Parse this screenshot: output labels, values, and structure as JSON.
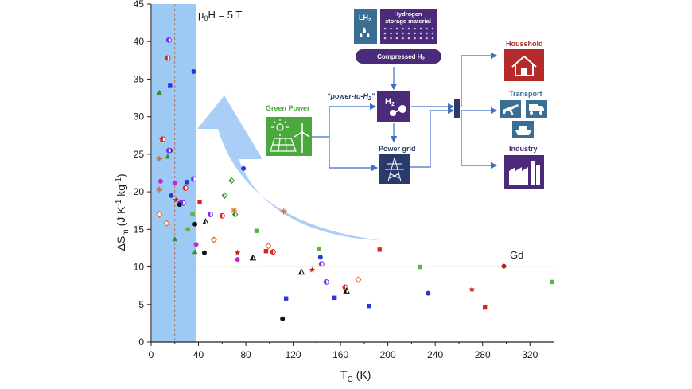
{
  "chart_data": {
    "type": "scatter",
    "title": "",
    "xlabel": "T",
    "xlabel_sub": "C",
    "xlabel_unit": "(K)",
    "ylabel_a": "-ΔS",
    "ylabel_sub": "m",
    "ylabel_b": " (J K",
    "ylabel_sup1": "-1",
    "ylabel_c": " kg",
    "ylabel_sup2": "-1",
    "ylabel_d": ")",
    "xlim": [
      0,
      340
    ],
    "ylim": [
      0,
      45
    ],
    "xticks": [
      0,
      40,
      80,
      120,
      160,
      200,
      240,
      280,
      320
    ],
    "yticks": [
      0,
      5,
      10,
      15,
      20,
      25,
      30,
      35,
      40,
      45
    ],
    "grid": false,
    "field_label_pre": "μ",
    "field_label_sub": "0",
    "field_label_post": "H = 5 T",
    "highlight_band_x": [
      0,
      38
    ],
    "highlight_band_color": "#8cc1f3",
    "dashed_vline_x": 20,
    "reference_line_y": 10.1,
    "reference_line_color": "#d9702a",
    "reference_label": "Gd",
    "points": [
      {
        "x": 15,
        "y": 40.2,
        "m": "halfcircle",
        "c": "#7a2ef0"
      },
      {
        "x": 14,
        "y": 37.8,
        "m": "halfcircle",
        "c": "#e0231f"
      },
      {
        "x": 36,
        "y": 36.0,
        "m": "circle",
        "c": "#2c35d6"
      },
      {
        "x": 16,
        "y": 34.2,
        "m": "square",
        "c": "#2c35d6"
      },
      {
        "x": 7,
        "y": 33.2,
        "m": "triangle",
        "c": "#3a8a2e"
      },
      {
        "x": 9,
        "y": 27.0,
        "m": "star",
        "c": "#c22020"
      },
      {
        "x": 10,
        "y": 27.0,
        "m": "halfcircle",
        "c": "#e0231f"
      },
      {
        "x": 16,
        "y": 25.5,
        "m": "circle",
        "c": "#111111"
      },
      {
        "x": 15,
        "y": 25.5,
        "m": "halfcircle",
        "c": "#7a2ef0"
      },
      {
        "x": 7,
        "y": 24.4,
        "m": "asterisk",
        "c": "#d9702a"
      },
      {
        "x": 14,
        "y": 24.7,
        "m": "triangle",
        "c": "#3a8a2e"
      },
      {
        "x": 78,
        "y": 23.1,
        "m": "circle",
        "c": "#2c35d6"
      },
      {
        "x": 36,
        "y": 21.7,
        "m": "halfcircle",
        "c": "#7a2ef0"
      },
      {
        "x": 68,
        "y": 21.5,
        "m": "halfdiamond",
        "c": "#3a8a2e"
      },
      {
        "x": 8,
        "y": 21.4,
        "m": "circle",
        "c": "#d11fd1"
      },
      {
        "x": 20,
        "y": 21.2,
        "m": "circle",
        "c": "#d11fd1"
      },
      {
        "x": 30,
        "y": 21.3,
        "m": "square",
        "c": "#2c35d6"
      },
      {
        "x": 7,
        "y": 20.3,
        "m": "asterisk",
        "c": "#d9702a"
      },
      {
        "x": 29,
        "y": 20.5,
        "m": "halfcircle",
        "c": "#e0231f"
      },
      {
        "x": 17,
        "y": 19.5,
        "m": "circle",
        "c": "#2c35d6"
      },
      {
        "x": 62,
        "y": 19.5,
        "m": "halfdiamond",
        "c": "#3a8a2e"
      },
      {
        "x": 21,
        "y": 18.9,
        "m": "star",
        "c": "#c22020"
      },
      {
        "x": 25,
        "y": 18.5,
        "m": "halfcircle",
        "c": "#7a2ef0"
      },
      {
        "x": 24,
        "y": 18.3,
        "m": "circle",
        "c": "#111111"
      },
      {
        "x": 27,
        "y": 18.5,
        "m": "halfcircle",
        "c": "#7a2ef0"
      },
      {
        "x": 41,
        "y": 18.6,
        "m": "square",
        "c": "#e0231f"
      },
      {
        "x": 7,
        "y": 17.0,
        "m": "diamond",
        "c": "#d9702a"
      },
      {
        "x": 35,
        "y": 17.0,
        "m": "square",
        "c": "#55b83a"
      },
      {
        "x": 50,
        "y": 17.0,
        "m": "halfcircle",
        "c": "#7a2ef0"
      },
      {
        "x": 60,
        "y": 16.8,
        "m": "halfcircle",
        "c": "#e0231f"
      },
      {
        "x": 70,
        "y": 17.5,
        "m": "asterisk",
        "c": "#d9702a"
      },
      {
        "x": 71,
        "y": 17.0,
        "m": "halfdiamond",
        "c": "#3a8a2e"
      },
      {
        "x": 112,
        "y": 17.4,
        "m": "asterisk",
        "c": "#d9702a"
      },
      {
        "x": 46,
        "y": 16.0,
        "m": "halftri",
        "c": "#111111"
      },
      {
        "x": 13,
        "y": 15.8,
        "m": "diamond",
        "c": "#d9702a"
      },
      {
        "x": 37,
        "y": 15.7,
        "m": "circle",
        "c": "#111111"
      },
      {
        "x": 31,
        "y": 15.0,
        "m": "square",
        "c": "#55b83a"
      },
      {
        "x": 89,
        "y": 14.8,
        "m": "square",
        "c": "#55b83a"
      },
      {
        "x": 20,
        "y": 13.7,
        "m": "triangle",
        "c": "#3a8a2e"
      },
      {
        "x": 53,
        "y": 13.6,
        "m": "diamond",
        "c": "#d9702a"
      },
      {
        "x": 38,
        "y": 13.0,
        "m": "circle",
        "c": "#d11fd1"
      },
      {
        "x": 99,
        "y": 12.8,
        "m": "diamond",
        "c": "#d9702a"
      },
      {
        "x": 142,
        "y": 12.4,
        "m": "square",
        "c": "#55b83a"
      },
      {
        "x": 193,
        "y": 12.3,
        "m": "square",
        "c": "#e0231f"
      },
      {
        "x": 37,
        "y": 12.0,
        "m": "triangle",
        "c": "#3a8a2e"
      },
      {
        "x": 45,
        "y": 11.9,
        "m": "circle",
        "c": "#111111"
      },
      {
        "x": 73,
        "y": 11.9,
        "m": "star",
        "c": "#c22020"
      },
      {
        "x": 97,
        "y": 12.1,
        "m": "square",
        "c": "#e0231f"
      },
      {
        "x": 103,
        "y": 12.0,
        "m": "halfcircle",
        "c": "#e0231f"
      },
      {
        "x": 86,
        "y": 11.2,
        "m": "halftri",
        "c": "#111111"
      },
      {
        "x": 143,
        "y": 11.3,
        "m": "circle",
        "c": "#2c35d6"
      },
      {
        "x": 73,
        "y": 11.0,
        "m": "circle",
        "c": "#d11fd1"
      },
      {
        "x": 144,
        "y": 10.4,
        "m": "halfcircle",
        "c": "#7a2ef0"
      },
      {
        "x": 227,
        "y": 10.0,
        "m": "square",
        "c": "#55b83a"
      },
      {
        "x": 298,
        "y": 10.1,
        "m": "circle",
        "c": "#c22020"
      },
      {
        "x": 136,
        "y": 9.6,
        "m": "star",
        "c": "#c22020"
      },
      {
        "x": 127,
        "y": 9.3,
        "m": "halftri",
        "c": "#111111"
      },
      {
        "x": 148,
        "y": 8.0,
        "m": "halfcircle",
        "c": "#7a2ef0"
      },
      {
        "x": 175,
        "y": 8.3,
        "m": "diamond",
        "c": "#d9702a"
      },
      {
        "x": 339,
        "y": 8.0,
        "m": "square",
        "c": "#55b83a"
      },
      {
        "x": 164,
        "y": 7.3,
        "m": "halfcircle",
        "c": "#e0231f"
      },
      {
        "x": 165,
        "y": 6.8,
        "m": "halftri",
        "c": "#111111"
      },
      {
        "x": 271,
        "y": 7.0,
        "m": "star",
        "c": "#c22020"
      },
      {
        "x": 234,
        "y": 6.5,
        "m": "circle",
        "c": "#2c35d6"
      },
      {
        "x": 114,
        "y": 5.8,
        "m": "square",
        "c": "#2c35d6"
      },
      {
        "x": 155,
        "y": 5.9,
        "m": "square",
        "c": "#2c35d6"
      },
      {
        "x": 184,
        "y": 4.8,
        "m": "square",
        "c": "#2c35d6"
      },
      {
        "x": 282,
        "y": 4.6,
        "m": "square",
        "c": "#e0231f"
      },
      {
        "x": 111,
        "y": 3.1,
        "m": "circle",
        "c": "#111111"
      }
    ]
  },
  "inset": {
    "green_power_label": "Green Power",
    "power_to_h2_pre": "“power-to-H",
    "power_to_h2_sub": "2",
    "power_to_h2_post": "”",
    "h2_label": "H",
    "h2_sub": "2",
    "power_grid_label": "Power grid",
    "lh2_label": "LH",
    "lh2_sub": "2",
    "storage_label_1": "Hydrogen",
    "storage_label_2": "storage material",
    "compressed_label": "Compressed H",
    "compressed_sub": "2",
    "household_label": "Household",
    "transport_label": "Transport",
    "industry_label": "Industry",
    "colors": {
      "green": "#4aa83c",
      "navy": "#2a3a6b",
      "purple": "#4b2a7a",
      "red": "#b52a2a",
      "teal": "#3a6f93",
      "arrow": "#3d6fc4"
    }
  }
}
